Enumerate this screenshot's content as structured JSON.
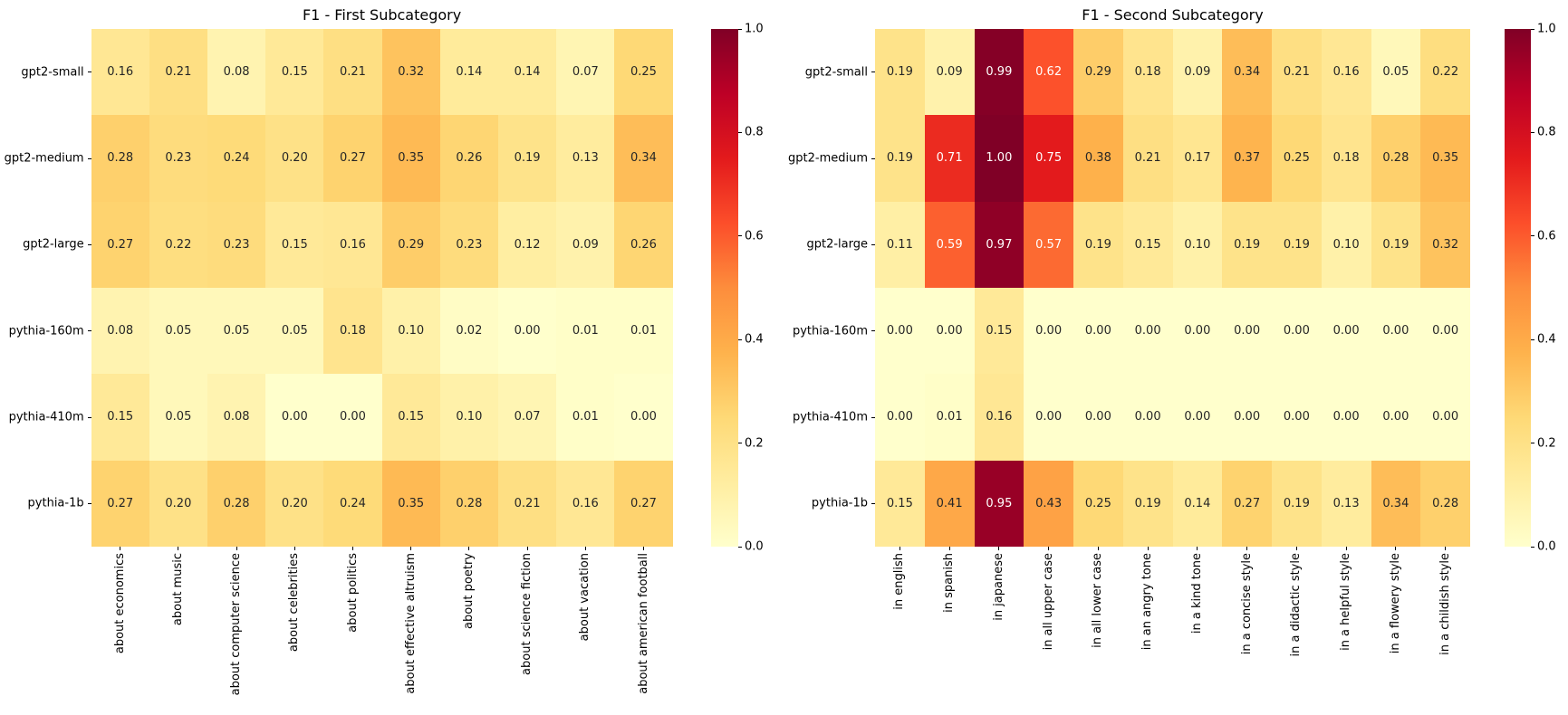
{
  "colormap": {
    "name": "YlOrRd",
    "stops": [
      "#ffffcc",
      "#ffeda0",
      "#fed976",
      "#feb24c",
      "#fd8d3c",
      "#fc4e2a",
      "#e31a1c",
      "#bd0026",
      "#800026"
    ]
  },
  "annotation_colors": {
    "dark": "#262626",
    "light": "#ffffff"
  },
  "chart_data": [
    {
      "type": "heatmap",
      "title": "F1 - First Subcategory",
      "rows": [
        "gpt2-small",
        "gpt2-medium",
        "gpt2-large",
        "pythia-160m",
        "pythia-410m",
        "pythia-1b"
      ],
      "columns": [
        "about economics",
        "about music",
        "about computer science",
        "about celebrities",
        "about politics",
        "about effective altruism",
        "about poetry",
        "about science fiction",
        "about vacation",
        "about american football"
      ],
      "values": [
        [
          0.16,
          0.21,
          0.08,
          0.15,
          0.21,
          0.32,
          0.14,
          0.14,
          0.07,
          0.25
        ],
        [
          0.28,
          0.23,
          0.24,
          0.2,
          0.27,
          0.35,
          0.26,
          0.19,
          0.13,
          0.34
        ],
        [
          0.27,
          0.22,
          0.23,
          0.15,
          0.16,
          0.29,
          0.23,
          0.12,
          0.09,
          0.26
        ],
        [
          0.08,
          0.05,
          0.05,
          0.05,
          0.18,
          0.1,
          0.02,
          0.0,
          0.01,
          0.01
        ],
        [
          0.15,
          0.05,
          0.08,
          0.0,
          0.0,
          0.15,
          0.1,
          0.07,
          0.01,
          0.0
        ],
        [
          0.27,
          0.2,
          0.28,
          0.2,
          0.24,
          0.35,
          0.28,
          0.21,
          0.16,
          0.27
        ]
      ],
      "vmin": 0.0,
      "vmax": 1.0,
      "colorbar_ticks": [
        "1.0",
        "0.8",
        "0.6",
        "0.4",
        "0.2",
        "0.0"
      ],
      "x_tick_rotation": 90,
      "colorbar_position": "right",
      "grid": false
    },
    {
      "type": "heatmap",
      "title": "F1 - Second Subcategory",
      "rows": [
        "gpt2-small",
        "gpt2-medium",
        "gpt2-large",
        "pythia-160m",
        "pythia-410m",
        "pythia-1b"
      ],
      "columns": [
        "in english",
        "in spanish",
        "in japanese",
        "in all upper case",
        "in all lower case",
        "in an angry tone",
        "in a kind tone",
        "in a concise style",
        "in a didactic style",
        "in a helpful style",
        "in a flowery style",
        "in a childish style"
      ],
      "values": [
        [
          0.19,
          0.09,
          0.99,
          0.62,
          0.29,
          0.18,
          0.09,
          0.34,
          0.21,
          0.16,
          0.05,
          0.22
        ],
        [
          0.19,
          0.71,
          1.0,
          0.75,
          0.38,
          0.21,
          0.17,
          0.37,
          0.25,
          0.18,
          0.28,
          0.35
        ],
        [
          0.11,
          0.59,
          0.97,
          0.57,
          0.19,
          0.15,
          0.1,
          0.19,
          0.19,
          0.1,
          0.19,
          0.32
        ],
        [
          0.0,
          0.0,
          0.15,
          0.0,
          0.0,
          0.0,
          0.0,
          0.0,
          0.0,
          0.0,
          0.0,
          0.0
        ],
        [
          0.0,
          0.01,
          0.16,
          0.0,
          0.0,
          0.0,
          0.0,
          0.0,
          0.0,
          0.0,
          0.0,
          0.0
        ],
        [
          0.15,
          0.41,
          0.95,
          0.43,
          0.25,
          0.19,
          0.14,
          0.27,
          0.19,
          0.13,
          0.34,
          0.28
        ]
      ],
      "vmin": 0.0,
      "vmax": 1.0,
      "colorbar_ticks": [
        "1.0",
        "0.8",
        "0.6",
        "0.4",
        "0.2",
        "0.0"
      ],
      "x_tick_rotation": 90,
      "colorbar_position": "right",
      "grid": false
    }
  ]
}
